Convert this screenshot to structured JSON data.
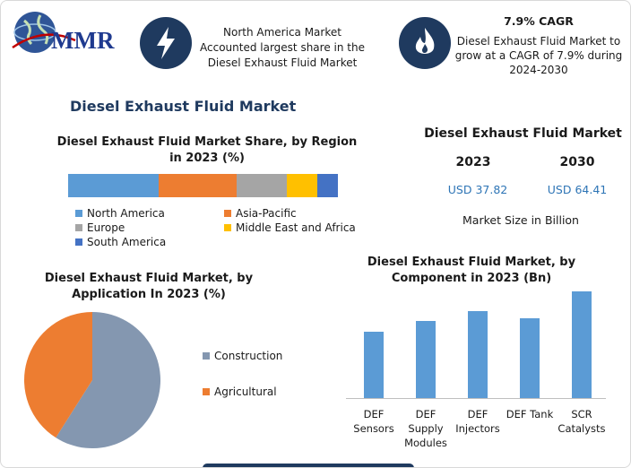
{
  "header": {
    "logo": "MMR",
    "info1": {
      "text": "North America Market Accounted largest share in the Diesel Exhaust Fluid Market"
    },
    "info2": {
      "title": "7.9% CAGR",
      "text": "Diesel Exhaust Fluid Market to grow at a CAGR of 7.9% during 2024-2030"
    }
  },
  "title": "Diesel Exhaust Fluid Market",
  "market_size": {
    "title": "Diesel Exhaust Fluid Market",
    "years": [
      "2023",
      "2030"
    ],
    "values": [
      "USD 37.82",
      "USD 64.41"
    ],
    "note": "Market Size in Billion"
  },
  "chart_data": [
    {
      "type": "stacked_bar",
      "title": "Diesel Exhaust Fluid Market Share, by Region in 2023 (%)",
      "series": [
        {
          "name": "North America",
          "color": "#5b9bd5",
          "values": [
            33.5
          ]
        },
        {
          "name": "Asia-Pacific",
          "color": "#ed7d31",
          "values": [
            29
          ]
        },
        {
          "name": "Europe",
          "color": "#a5a5a5",
          "values": [
            18.5
          ]
        },
        {
          "name": "Middle East and Africa",
          "color": "#ffc000",
          "values": [
            11.5
          ]
        },
        {
          "name": "South America",
          "color": "#4472c4",
          "values": [
            7.5
          ]
        }
      ]
    },
    {
      "type": "pie",
      "title": "Diesel Exhaust Fluid Market, by Application In 2023 (%)",
      "categories": [
        "Construction",
        "Agricultural"
      ],
      "values": [
        59,
        41
      ],
      "colors": [
        "#8497b0",
        "#ed7d31"
      ]
    },
    {
      "type": "bar",
      "title": "Diesel Exhaust Fluid Market, by Component in 2023 (Bn)",
      "categories": [
        "DEF Sensors",
        "DEF Supply Modules",
        "DEF Injectors",
        "DEF Tank",
        "SCR Catalysts"
      ],
      "values": [
        74,
        86,
        97,
        89,
        119
      ],
      "color": "#5b9bd5"
    }
  ]
}
